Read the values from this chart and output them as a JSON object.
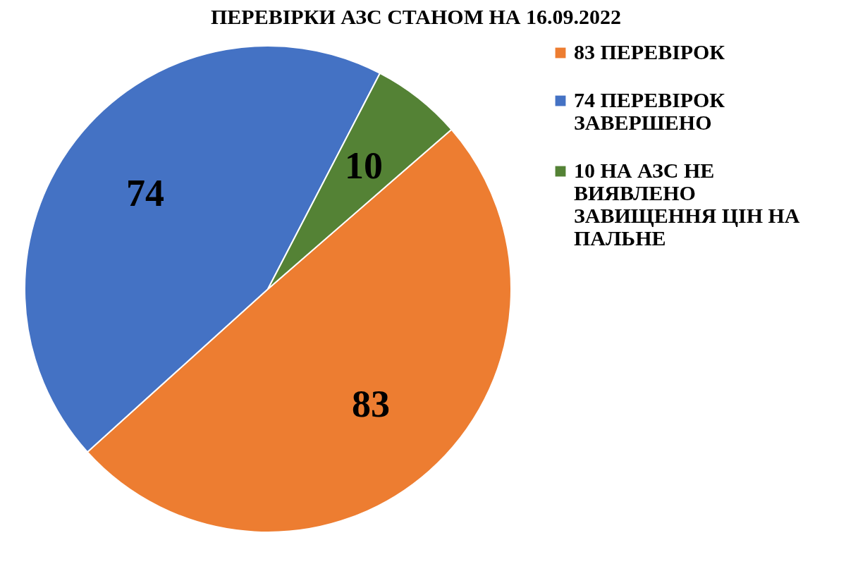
{
  "chart_data": {
    "type": "pie",
    "title": "ПЕРЕВІРКИ АЗС СТАНОМ НА 16.09.2022",
    "categories": [
      "83 ПЕРЕВІРОК",
      "74 ПЕРЕВІРОК ЗАВЕРШЕНО",
      "10 НА  АЗС НЕ ВИЯВЛЕНО ЗАВИЩЕННЯ ЦІН НА ПАЛЬНЕ"
    ],
    "values": [
      83,
      74,
      10
    ],
    "colors": [
      "#ed7d31",
      "#4472c4",
      "#548235"
    ],
    "data_labels": true,
    "legend": "right"
  }
}
